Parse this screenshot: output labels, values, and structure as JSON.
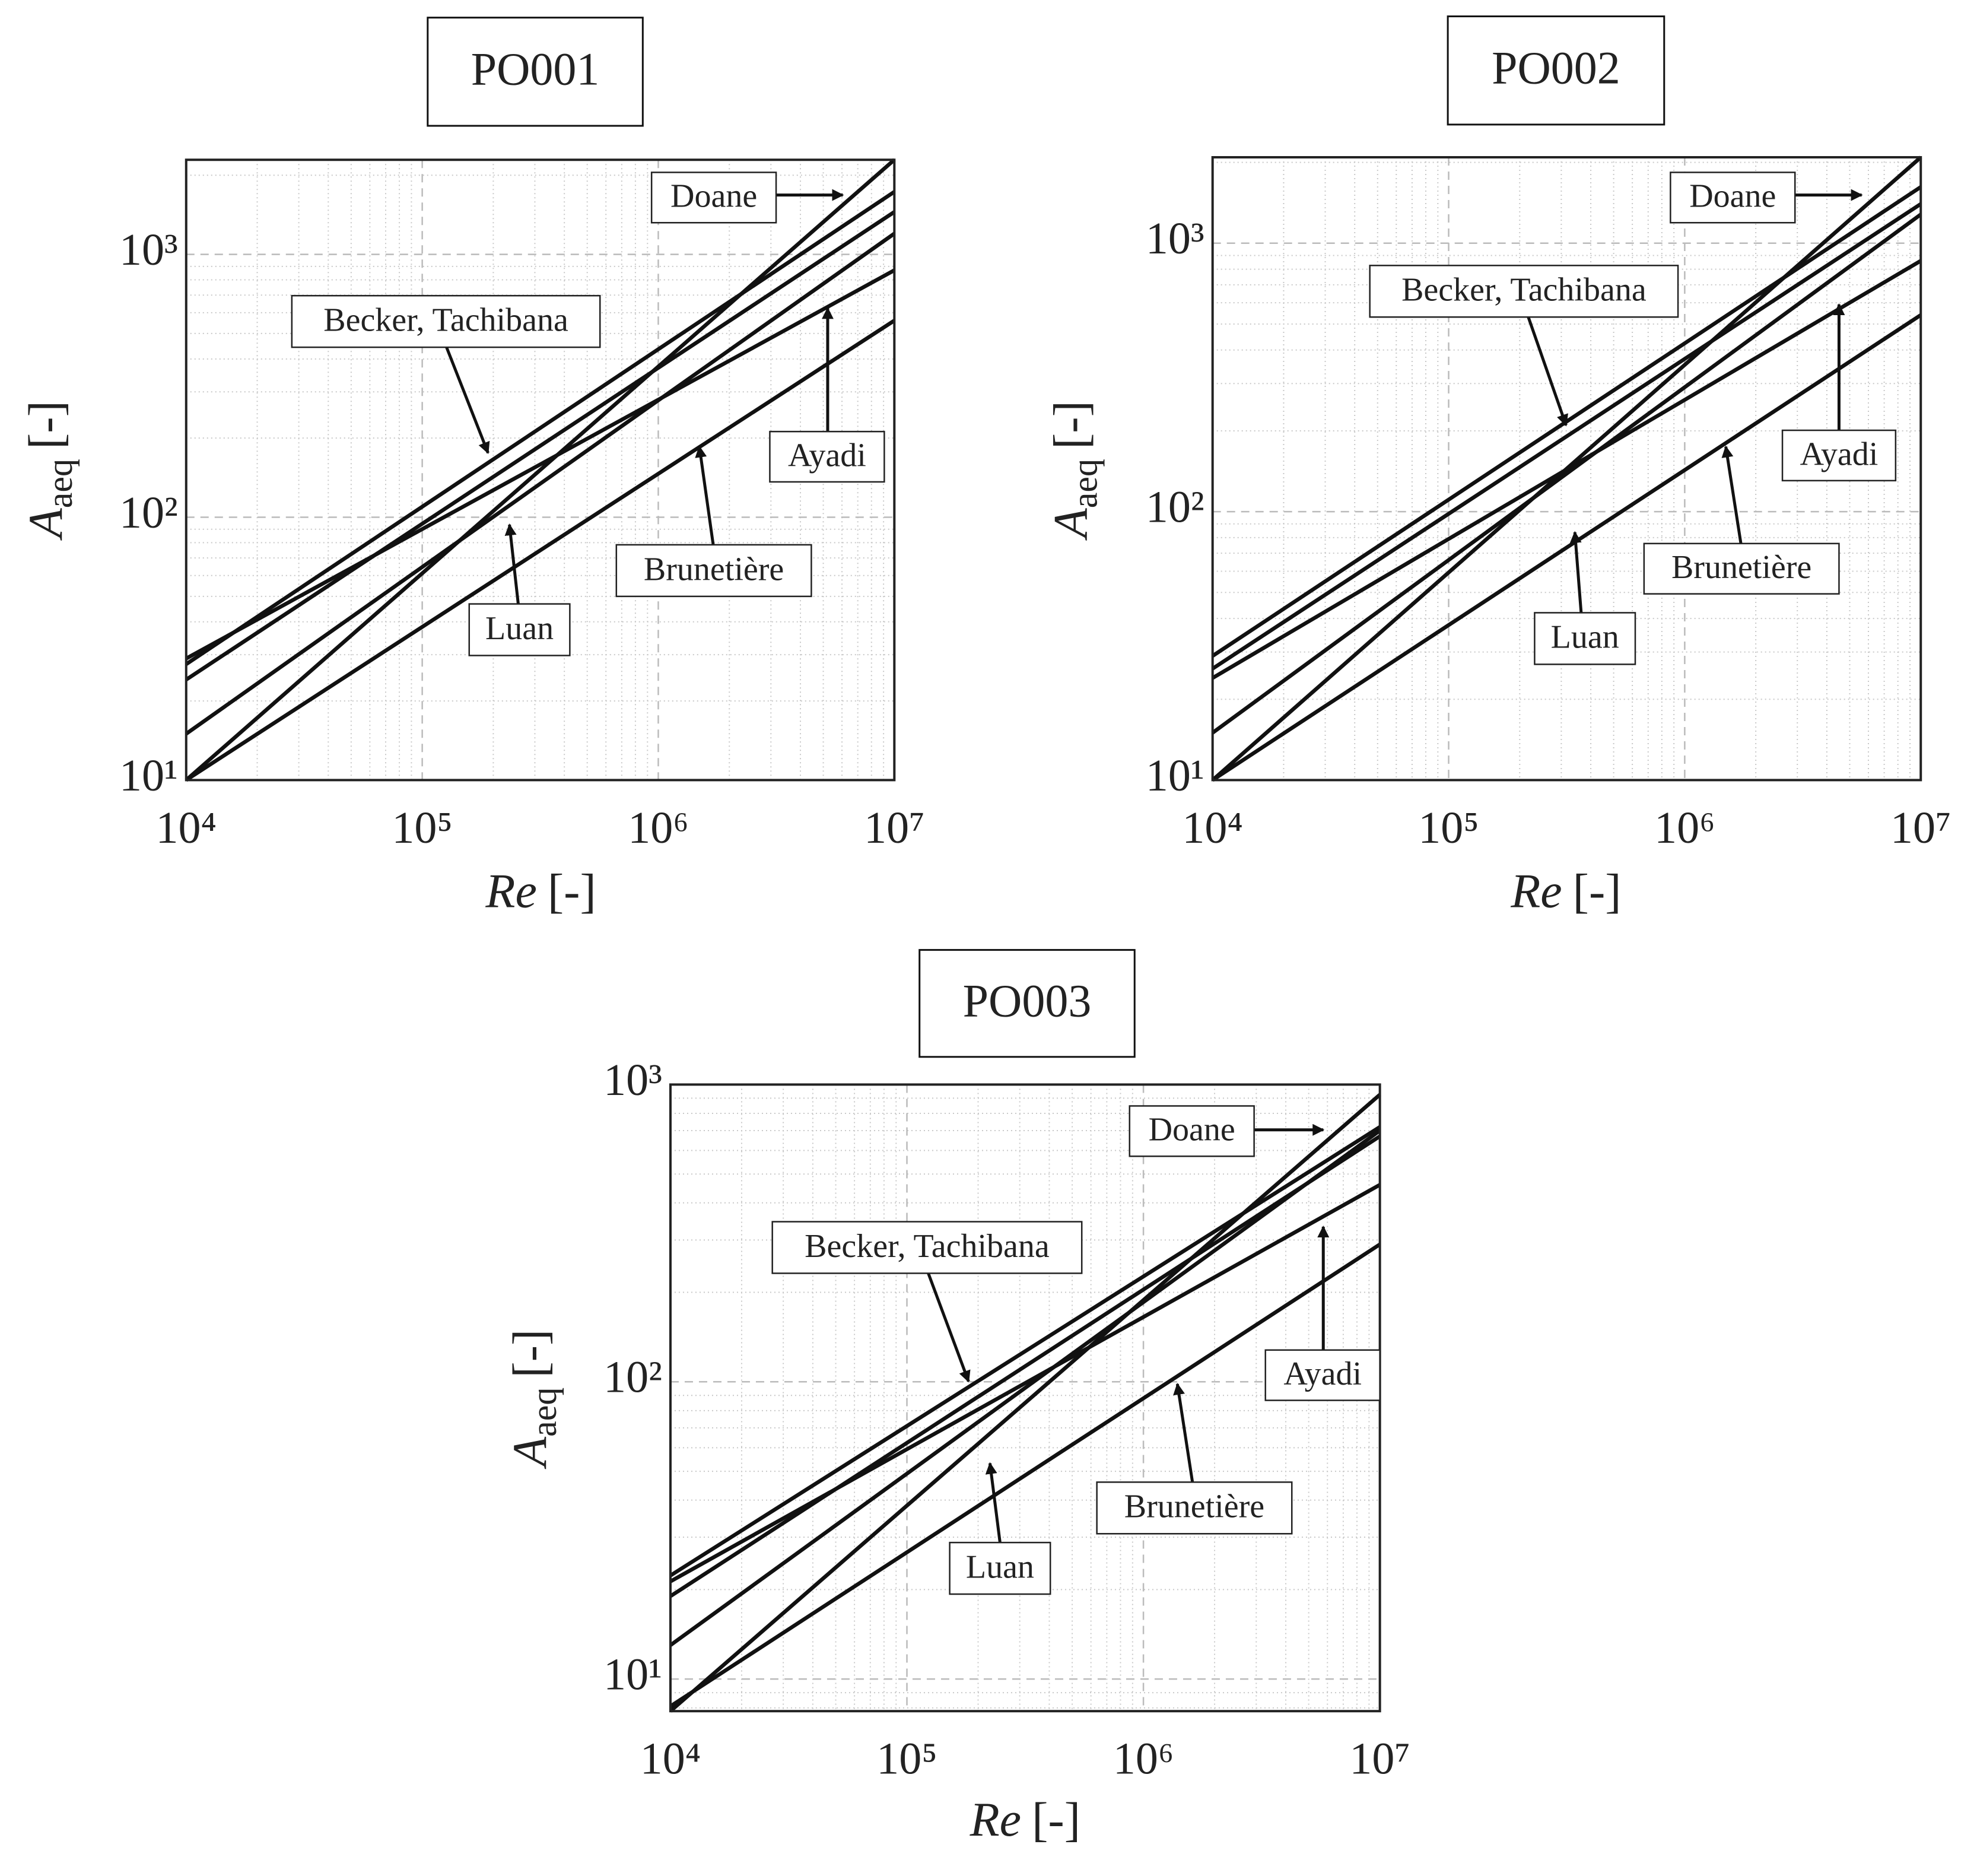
{
  "chart_data": [
    {
      "type": "line",
      "title": "PO001",
      "log_x": true,
      "log_y": true,
      "grid": true,
      "minor_grid": true,
      "xlabel": {
        "symbol": "Re",
        "unit": "[-]"
      },
      "ylabel": {
        "symbol": "A",
        "subscript": "aeq",
        "unit": "[-]"
      },
      "x": [
        10000,
        10000000
      ],
      "xlim": [
        10000,
        10000000
      ],
      "ylim": [
        10,
        2290
      ],
      "xticks": [
        {
          "value": 10000,
          "label": "10⁴"
        },
        {
          "value": 100000,
          "label": "10⁵"
        },
        {
          "value": 1000000,
          "label": "10⁶"
        },
        {
          "value": 10000000,
          "label": "10⁷"
        }
      ],
      "yticks": [
        {
          "value": 10,
          "label": "10¹"
        },
        {
          "value": 100,
          "label": "10²"
        },
        {
          "value": 1000,
          "label": "10³"
        }
      ],
      "series": [
        {
          "color": "#111111",
          "values": [
            10,
            2290
          ]
        },
        {
          "color": "#111111",
          "values": [
            27.6,
            1730
          ]
        },
        {
          "color": "#111111",
          "values": [
            24.1,
            1450
          ]
        },
        {
          "color": "#111111",
          "values": [
            15,
            1200
          ]
        },
        {
          "color": "#111111",
          "values": [
            29,
            870
          ]
        },
        {
          "color": "#111111",
          "values": [
            10,
            560
          ]
        }
      ],
      "annotations": [
        "Doane",
        "Becker, Tachibana",
        "Ayadi",
        "Brunetière",
        "Luan"
      ]
    },
    {
      "type": "line",
      "title": "PO002",
      "log_x": true,
      "log_y": true,
      "grid": true,
      "minor_grid": true,
      "xlabel": {
        "symbol": "Re",
        "unit": "[-]"
      },
      "ylabel": {
        "symbol": "A",
        "subscript": "aeq",
        "unit": "[-]"
      },
      "x": [
        10000,
        10000000
      ],
      "xlim": [
        10000,
        10000000
      ],
      "ylim": [
        10,
        2090
      ],
      "xticks": [
        {
          "value": 10000,
          "label": "10⁴"
        },
        {
          "value": 100000,
          "label": "10⁵"
        },
        {
          "value": 1000000,
          "label": "10⁶"
        },
        {
          "value": 10000000,
          "label": "10⁷"
        }
      ],
      "yticks": [
        {
          "value": 10,
          "label": "10¹"
        },
        {
          "value": 100,
          "label": "10²"
        },
        {
          "value": 1000,
          "label": "10³"
        }
      ],
      "series": [
        {
          "color": "#111111",
          "values": [
            10,
            2090
          ]
        },
        {
          "color": "#111111",
          "values": [
            29,
            1620
          ]
        },
        {
          "color": "#111111",
          "values": [
            26,
            1400
          ]
        },
        {
          "color": "#111111",
          "values": [
            15,
            1280
          ]
        },
        {
          "color": "#111111",
          "values": [
            24,
            860
          ]
        },
        {
          "color": "#111111",
          "values": [
            10,
            540
          ]
        }
      ],
      "annotations": [
        "Doane",
        "Becker, Tachibana",
        "Ayadi",
        "Brunetière",
        "Luan"
      ]
    },
    {
      "type": "line",
      "title": "PO003",
      "log_x": true,
      "log_y": true,
      "grid": true,
      "minor_grid": true,
      "xlabel": {
        "symbol": "Re",
        "unit": "[-]"
      },
      "ylabel": {
        "symbol": "A",
        "subscript": "aeq",
        "unit": "[-]"
      },
      "x": [
        10000,
        10000000
      ],
      "xlim": [
        10000,
        10000000
      ],
      "ylim": [
        7.8,
        1000
      ],
      "xticks": [
        {
          "value": 10000,
          "label": "10⁴"
        },
        {
          "value": 100000,
          "label": "10⁵"
        },
        {
          "value": 1000000,
          "label": "10⁶"
        },
        {
          "value": 10000000,
          "label": "10⁷"
        }
      ],
      "yticks": [
        {
          "value": 10,
          "label": "10¹"
        },
        {
          "value": 100,
          "label": "10²"
        },
        {
          "value": 1000,
          "label": "10³"
        }
      ],
      "series": [
        {
          "color": "#111111",
          "values": [
            7.8,
            925
          ]
        },
        {
          "color": "#111111",
          "values": [
            22.3,
            720
          ]
        },
        {
          "color": "#111111",
          "values": [
            19,
            670
          ]
        },
        {
          "color": "#111111",
          "values": [
            13,
            700
          ]
        },
        {
          "color": "#111111",
          "values": [
            21.3,
            460
          ]
        },
        {
          "color": "#111111",
          "values": [
            8.1,
            290
          ]
        }
      ],
      "annotations": [
        "Doane",
        "Becker, Tachibana",
        "Ayadi",
        "Brunetière",
        "Luan"
      ]
    }
  ]
}
